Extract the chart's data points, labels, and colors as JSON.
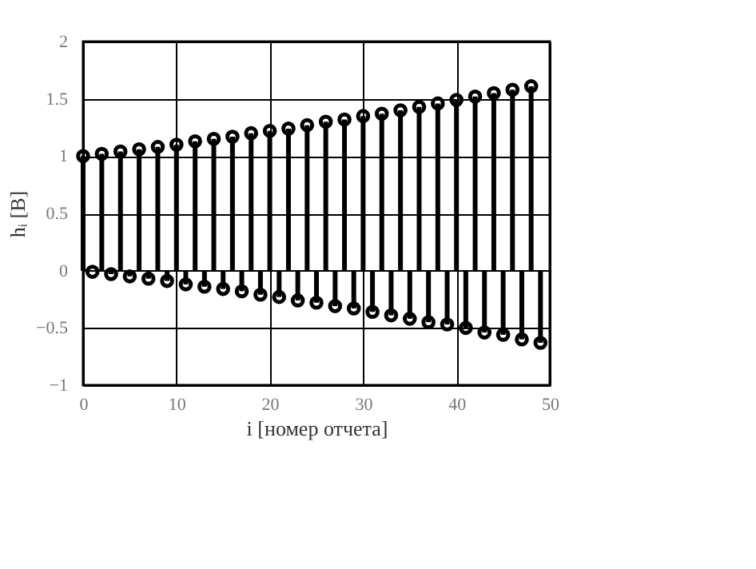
{
  "chart_data": {
    "type": "lollipop",
    "xlabel": "i [номер отчета]",
    "ylabel": "hᵢ [В]",
    "x": [
      0,
      1,
      2,
      3,
      4,
      5,
      6,
      7,
      8,
      9,
      10,
      11,
      12,
      13,
      14,
      15,
      16,
      17,
      18,
      19,
      20,
      21,
      22,
      23,
      24,
      25,
      26,
      27,
      28,
      29,
      30,
      31,
      32,
      33,
      34,
      35,
      36,
      37,
      38,
      39,
      40,
      41,
      42,
      43,
      44,
      45,
      46,
      47,
      48,
      49
    ],
    "series": [
      {
        "color": "#000000",
        "values": [
          1.0,
          -0.01,
          1.02,
          -0.03,
          1.04,
          -0.05,
          1.06,
          -0.07,
          1.08,
          -0.09,
          1.1,
          -0.12,
          1.13,
          -0.14,
          1.15,
          -0.16,
          1.17,
          -0.18,
          1.2,
          -0.21,
          1.22,
          -0.23,
          1.24,
          -0.26,
          1.27,
          -0.28,
          1.3,
          -0.31,
          1.32,
          -0.33,
          1.35,
          -0.36,
          1.37,
          -0.39,
          1.4,
          -0.42,
          1.43,
          -0.45,
          1.46,
          -0.47,
          1.49,
          -0.5,
          1.52,
          -0.54,
          1.55,
          -0.56,
          1.58,
          -0.6,
          1.61,
          -0.63
        ]
      }
    ],
    "xlim": [
      0,
      50
    ],
    "xticks": [
      0,
      10,
      20,
      30,
      40,
      50
    ],
    "ylim": [
      -1,
      2
    ],
    "yticks": [
      -1,
      -0.5,
      0,
      0.5,
      1,
      1.5,
      2
    ],
    "grid": true,
    "marker": "circle"
  }
}
